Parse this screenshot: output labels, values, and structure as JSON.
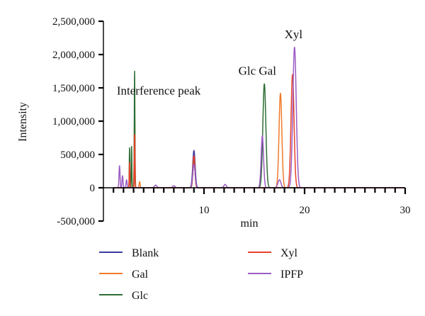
{
  "chart_data": {
    "type": "line",
    "xlabel": "min",
    "ylabel": "Intensity",
    "xlim": [
      0,
      30
    ],
    "ylim": [
      -500000,
      2500000
    ],
    "x_ticks": [
      10,
      20,
      30
    ],
    "y_ticks": [
      -500000,
      0,
      500000,
      1000000,
      1500000,
      2000000,
      2500000
    ],
    "y_tick_labels": [
      "-500,000",
      "0",
      "500,000",
      "1,000,000",
      "1,500,000",
      "2,000,000",
      "2,500,000"
    ],
    "x_tick_labels": [
      "10",
      "20",
      "30"
    ],
    "grid": false,
    "legend_placement": "bottom",
    "annotations": [
      {
        "text": "Interference peak",
        "x": 5.5,
        "y": 1450000
      },
      {
        "text": "Glc Gal",
        "x": 15.3,
        "y": 1750000
      },
      {
        "text": "Xyl",
        "x": 18.9,
        "y": 2300000
      }
    ],
    "series": [
      {
        "name": "Blank",
        "color": "#3b3b9e",
        "peaks": [
          {
            "x": 9.0,
            "height": 560000,
            "width": 0.12
          }
        ]
      },
      {
        "name": "Gal",
        "color": "#f07a2a",
        "peaks": [
          {
            "x": 3.1,
            "height": 1120000,
            "width": 0.04
          },
          {
            "x": 3.6,
            "height": 90000,
            "width": 0.05
          },
          {
            "x": 9.0,
            "height": 420000,
            "width": 0.1
          },
          {
            "x": 17.6,
            "height": 1420000,
            "width": 0.14
          }
        ]
      },
      {
        "name": "Glc",
        "color": "#2e6e35",
        "peaks": [
          {
            "x": 2.6,
            "height": 600000,
            "width": 0.03
          },
          {
            "x": 2.8,
            "height": 620000,
            "width": 0.03
          },
          {
            "x": 3.1,
            "height": 1750000,
            "width": 0.03
          },
          {
            "x": 9.0,
            "height": 440000,
            "width": 0.1
          },
          {
            "x": 16.0,
            "height": 1560000,
            "width": 0.15
          }
        ]
      },
      {
        "name": "Xyl",
        "color": "#e8412a",
        "peaks": [
          {
            "x": 2.6,
            "height": 380000,
            "width": 0.03
          },
          {
            "x": 3.1,
            "height": 800000,
            "width": 0.03
          },
          {
            "x": 9.0,
            "height": 480000,
            "width": 0.1
          },
          {
            "x": 18.8,
            "height": 1700000,
            "width": 0.15
          }
        ]
      },
      {
        "name": "IPFP",
        "color": "#9b5cc4",
        "peaks": [
          {
            "x": 1.6,
            "height": 330000,
            "width": 0.05
          },
          {
            "x": 1.9,
            "height": 180000,
            "width": 0.05
          },
          {
            "x": 2.3,
            "height": 120000,
            "width": 0.05
          },
          {
            "x": 5.2,
            "height": 40000,
            "width": 0.12
          },
          {
            "x": 7.0,
            "height": 30000,
            "width": 0.12
          },
          {
            "x": 9.0,
            "height": 350000,
            "width": 0.12
          },
          {
            "x": 12.1,
            "height": 50000,
            "width": 0.12
          },
          {
            "x": 15.8,
            "height": 780000,
            "width": 0.12
          },
          {
            "x": 17.5,
            "height": 120000,
            "width": 0.15
          },
          {
            "x": 19.0,
            "height": 2110000,
            "width": 0.17
          }
        ]
      }
    ]
  }
}
